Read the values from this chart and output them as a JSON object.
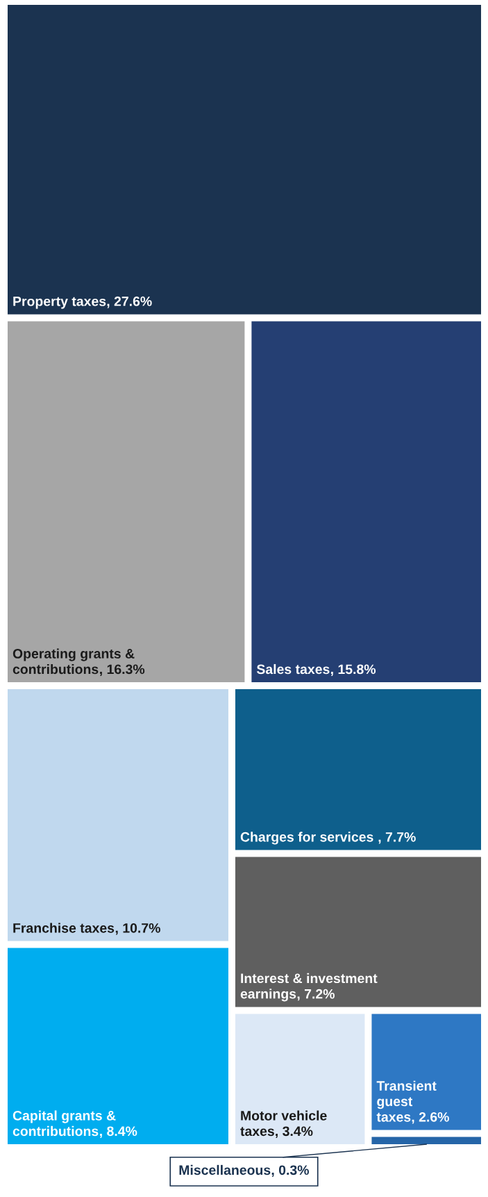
{
  "chart_data": {
    "type": "other",
    "categories": [
      "Property taxes",
      "Operating grants & contributions",
      "Sales taxes",
      "Franchise taxes",
      "Charges for services ",
      "Interest & investment earnings",
      "Capital grants & contributions",
      "Motor vehicle taxes",
      "Transient guest taxes",
      "Miscellaneous"
    ],
    "values": [
      27.6,
      16.3,
      15.8,
      10.7,
      7.7,
      7.2,
      8.4,
      3.4,
      2.6,
      0.3
    ],
    "value_labels": [
      ", 27.6%",
      ", 16.3%",
      ", 15.8%",
      ", 10.7%",
      ", 7.7%",
      ", 7.2%",
      ", 8.4%",
      ", 3.4%",
      ", 2.6%",
      ", 0.3%"
    ],
    "data_labels": true,
    "colors": [
      "#1b3350",
      "#a6a6a6",
      "#253f73",
      "#c0d8ee",
      "#0e5f8c",
      "#5f5f5f",
      "#00adef",
      "#dce8f6",
      "#2e78c4",
      "#2565a8"
    ]
  }
}
